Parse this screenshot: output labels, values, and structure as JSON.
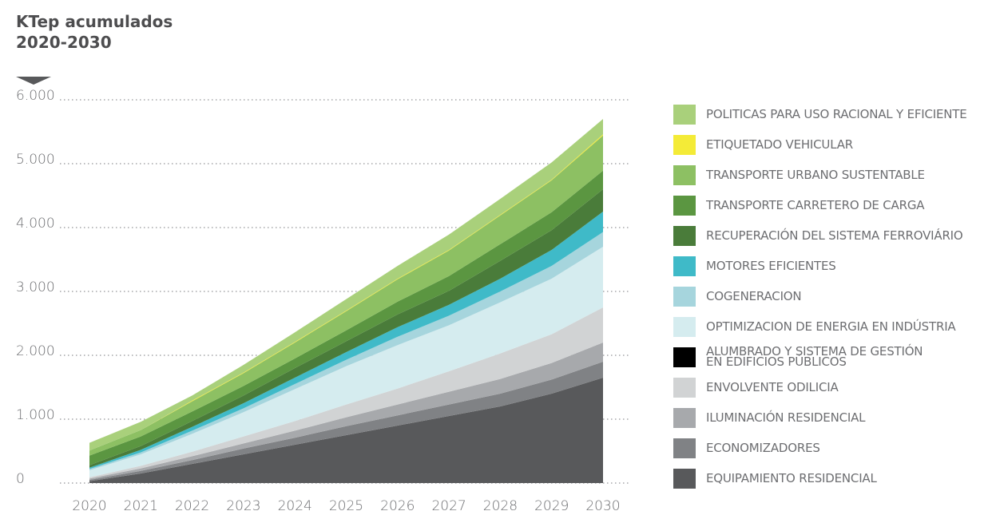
{
  "chart_data": {
    "type": "stacked_area",
    "y_label": "KTep acumulados\n2020-2030",
    "x": [
      2020,
      2021,
      2022,
      2023,
      2024,
      2025,
      2026,
      2027,
      2028,
      2029,
      2030
    ],
    "xticks": [
      2020,
      2021,
      2022,
      2023,
      2024,
      2025,
      2026,
      2027,
      2028,
      2029,
      2030
    ],
    "xlim": [
      2020,
      2030
    ],
    "ylim": [
      0,
      6000
    ],
    "yticks": [
      0,
      {
        "value": 1000,
        "label": "1.000"
      },
      {
        "value": 2000,
        "label": "2.000"
      },
      {
        "value": 3000,
        "label": "3.000"
      },
      {
        "value": 4000,
        "label": "4.000"
      },
      {
        "value": 5000,
        "label": "5.000"
      },
      {
        "value": 6000,
        "label": "6.000"
      }
    ],
    "grid": true,
    "legend": "right",
    "series": [
      {
        "name": "EQUIPAMIENTO RESIDENCIAL",
        "color": "#58595b",
        "values": [
          30,
          150,
          300,
          450,
          600,
          750,
          900,
          1050,
          1200,
          1400,
          1650
        ]
      },
      {
        "name": "ECONOMIZADORES",
        "color": "#808285",
        "values": [
          20,
          40,
          60,
          90,
          110,
          140,
          160,
          180,
          200,
          220,
          250
        ]
      },
      {
        "name": "ILUMINACIÓN RESIDENCIAL",
        "color": "#a7a9ac",
        "values": [
          20,
          40,
          60,
          80,
          110,
          140,
          170,
          200,
          230,
          260,
          300
        ]
      },
      {
        "name": "ENVOLVENTE ODILICIA",
        "color": "#d1d3d4",
        "values": [
          20,
          40,
          70,
          110,
          150,
          200,
          250,
          320,
          400,
          450,
          550
        ]
      },
      {
        "name": "ALUMBRADO Y SISTEMA DE GESTIÓN\nEN EDIFICIOS PÚBLICOS",
        "color": "#000000",
        "values": [
          0,
          0,
          0,
          0,
          0,
          0,
          0,
          0,
          0,
          0,
          0
        ]
      },
      {
        "name": "OPTIMIZACION DE ENERGIA EN INDÚSTRIA",
        "color": "#d5ecef",
        "values": [
          110,
          180,
          280,
          380,
          500,
          600,
          680,
          720,
          800,
          870,
          950
        ]
      },
      {
        "name": "COGENERACION",
        "color": "#a6d5dd",
        "values": [
          20,
          30,
          50,
          60,
          80,
          100,
          130,
          150,
          170,
          200,
          230
        ]
      },
      {
        "name": "MOTORES EFICIENTES",
        "color": "#3fbac8",
        "values": [
          20,
          40,
          60,
          80,
          100,
          120,
          150,
          170,
          200,
          250,
          320
        ]
      },
      {
        "name": "RECUPERACIÓN DEL SISTEMA FERROVIÁRIO",
        "color": "#4a7c3a",
        "values": [
          40,
          60,
          90,
          120,
          150,
          170,
          200,
          220,
          280,
          310,
          350
        ]
      },
      {
        "name": "TRANSPORTE CARRETERO DE CARGA",
        "color": "#5b9641",
        "values": [
          150,
          150,
          150,
          150,
          150,
          170,
          200,
          230,
          260,
          280,
          290
        ]
      },
      {
        "name": "TRANSPORTE URBANO SUSTENTABLE",
        "color": "#8dc063",
        "values": [
          80,
          100,
          160,
          200,
          250,
          300,
          350,
          400,
          450,
          500,
          550
        ]
      },
      {
        "name": "ETIQUETADO VEHICULAR",
        "color": "#f4eb37",
        "values": [
          0,
          0,
          10,
          10,
          10,
          10,
          10,
          10,
          10,
          10,
          20
        ]
      },
      {
        "name": "POLITICAS PARA USO RACIONAL Y EFICIENTE",
        "color": "#a9d07b",
        "values": [
          120,
          130,
          80,
          120,
          150,
          180,
          200,
          240,
          250,
          270,
          240
        ]
      }
    ]
  }
}
